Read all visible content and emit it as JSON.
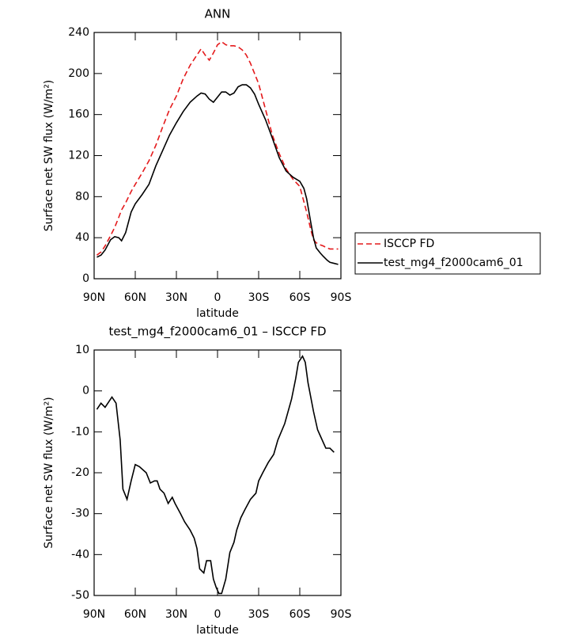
{
  "chart_data": [
    {
      "type": "line",
      "title": "ANN",
      "xlabel": "latitude",
      "ylabel": "Surface net SW flux (W/m²)",
      "x": [
        88,
        85,
        82,
        78,
        75,
        72,
        70,
        67,
        63,
        60,
        55,
        50,
        45,
        40,
        35,
        30,
        25,
        20,
        15,
        12,
        9,
        6,
        3,
        0,
        -3,
        -6,
        -9,
        -12,
        -15,
        -18,
        -21,
        -24,
        -27,
        -30,
        -35,
        -40,
        -45,
        -50,
        -55,
        -60,
        -63,
        -65,
        -68,
        -70,
        -72,
        -75,
        -77,
        -80,
        -82,
        -85,
        -88
      ],
      "series": [
        {
          "name": "ISCCP FD",
          "color": "#e41a1c",
          "dashed": true,
          "values": [
            23,
            26,
            32,
            42,
            50,
            60,
            67,
            74,
            85,
            92,
            103,
            115,
            130,
            148,
            165,
            178,
            195,
            208,
            218,
            224,
            218,
            213,
            220,
            228,
            231,
            228,
            227,
            227,
            226,
            223,
            218,
            210,
            200,
            190,
            165,
            140,
            122,
            107,
            97,
            90,
            75,
            65,
            48,
            38,
            35,
            33,
            32,
            30,
            29,
            29,
            29
          ]
        },
        {
          "name": "test_mg4_f2000cam6_01",
          "color": "#000000",
          "dashed": false,
          "values": [
            21,
            23,
            28,
            38,
            41,
            40,
            37,
            45,
            65,
            73,
            82,
            92,
            110,
            125,
            140,
            152,
            163,
            172,
            178,
            181,
            180,
            175,
            172,
            177,
            182,
            182,
            179,
            181,
            187,
            189,
            189,
            186,
            180,
            170,
            155,
            137,
            118,
            105,
            99,
            95,
            88,
            78,
            55,
            40,
            30,
            25,
            22,
            18,
            16,
            15,
            14
          ]
        }
      ],
      "xlim": [
        90,
        -90
      ],
      "xticks": [
        {
          "value": 90,
          "label": "90N"
        },
        {
          "value": 60,
          "label": "60N"
        },
        {
          "value": 30,
          "label": "30N"
        },
        0,
        {
          "value": -30,
          "label": "30S"
        },
        {
          "value": -60,
          "label": "60S"
        },
        {
          "value": -90,
          "label": "90S"
        }
      ],
      "ylim": [
        0,
        240
      ],
      "yticks": [
        0,
        40,
        80,
        120,
        160,
        200,
        240
      ],
      "legend": "right"
    },
    {
      "type": "line",
      "title": "test_mg4_f2000cam6_01 – ISCCP FD",
      "xlabel": "latitude",
      "ylabel": "Surface net SW flux (W/m²)",
      "x": [
        88,
        85,
        82,
        80,
        77,
        74,
        71,
        69,
        66,
        63,
        60,
        57,
        52,
        49,
        46,
        44,
        42,
        39,
        36,
        33,
        31,
        27,
        24,
        20,
        17,
        15,
        13,
        10,
        8,
        5,
        3,
        1,
        -1,
        -3,
        -6,
        -9,
        -12,
        -14,
        -17,
        -20,
        -24,
        -28,
        -30,
        -33,
        -37,
        -41,
        -44,
        -49,
        -54,
        -57,
        -59,
        -62,
        -64,
        -66,
        -70,
        -73,
        -75,
        -79,
        -82,
        -85
      ],
      "series": [
        {
          "name": "test_mg4_f2000cam6_01",
          "color": "#000000",
          "dashed": false,
          "values": [
            -4.5,
            -3,
            -4,
            -3,
            -1.5,
            -3,
            -12,
            -24,
            -26.5,
            -22,
            -18,
            -18.5,
            -20,
            -22.5,
            -22,
            -22,
            -24,
            -25,
            -27.5,
            -26,
            -27.5,
            -30,
            -32,
            -34,
            -36,
            -38.5,
            -43.5,
            -44.5,
            -41.5,
            -41.5,
            -46,
            -48,
            -49.5,
            -49.5,
            -46,
            -39.5,
            -37,
            -34,
            -31,
            -29,
            -26.5,
            -25,
            -22,
            -20,
            -17.5,
            -15.5,
            -12,
            -8,
            -2,
            3,
            7,
            8.5,
            7,
            2,
            -5,
            -9.5,
            -11,
            -14,
            -14,
            -15
          ]
        }
      ],
      "xlim": [
        90,
        -90
      ],
      "xticks": [
        {
          "value": 90,
          "label": "90N"
        },
        {
          "value": 60,
          "label": "60N"
        },
        {
          "value": 30,
          "label": "30N"
        },
        0,
        {
          "value": -30,
          "label": "30S"
        },
        {
          "value": -60,
          "label": "60S"
        },
        {
          "value": -90,
          "label": "90S"
        }
      ],
      "ylim": [
        -50,
        10
      ],
      "yticks": [
        -50,
        -40,
        -30,
        -20,
        -10,
        0,
        10
      ]
    }
  ]
}
